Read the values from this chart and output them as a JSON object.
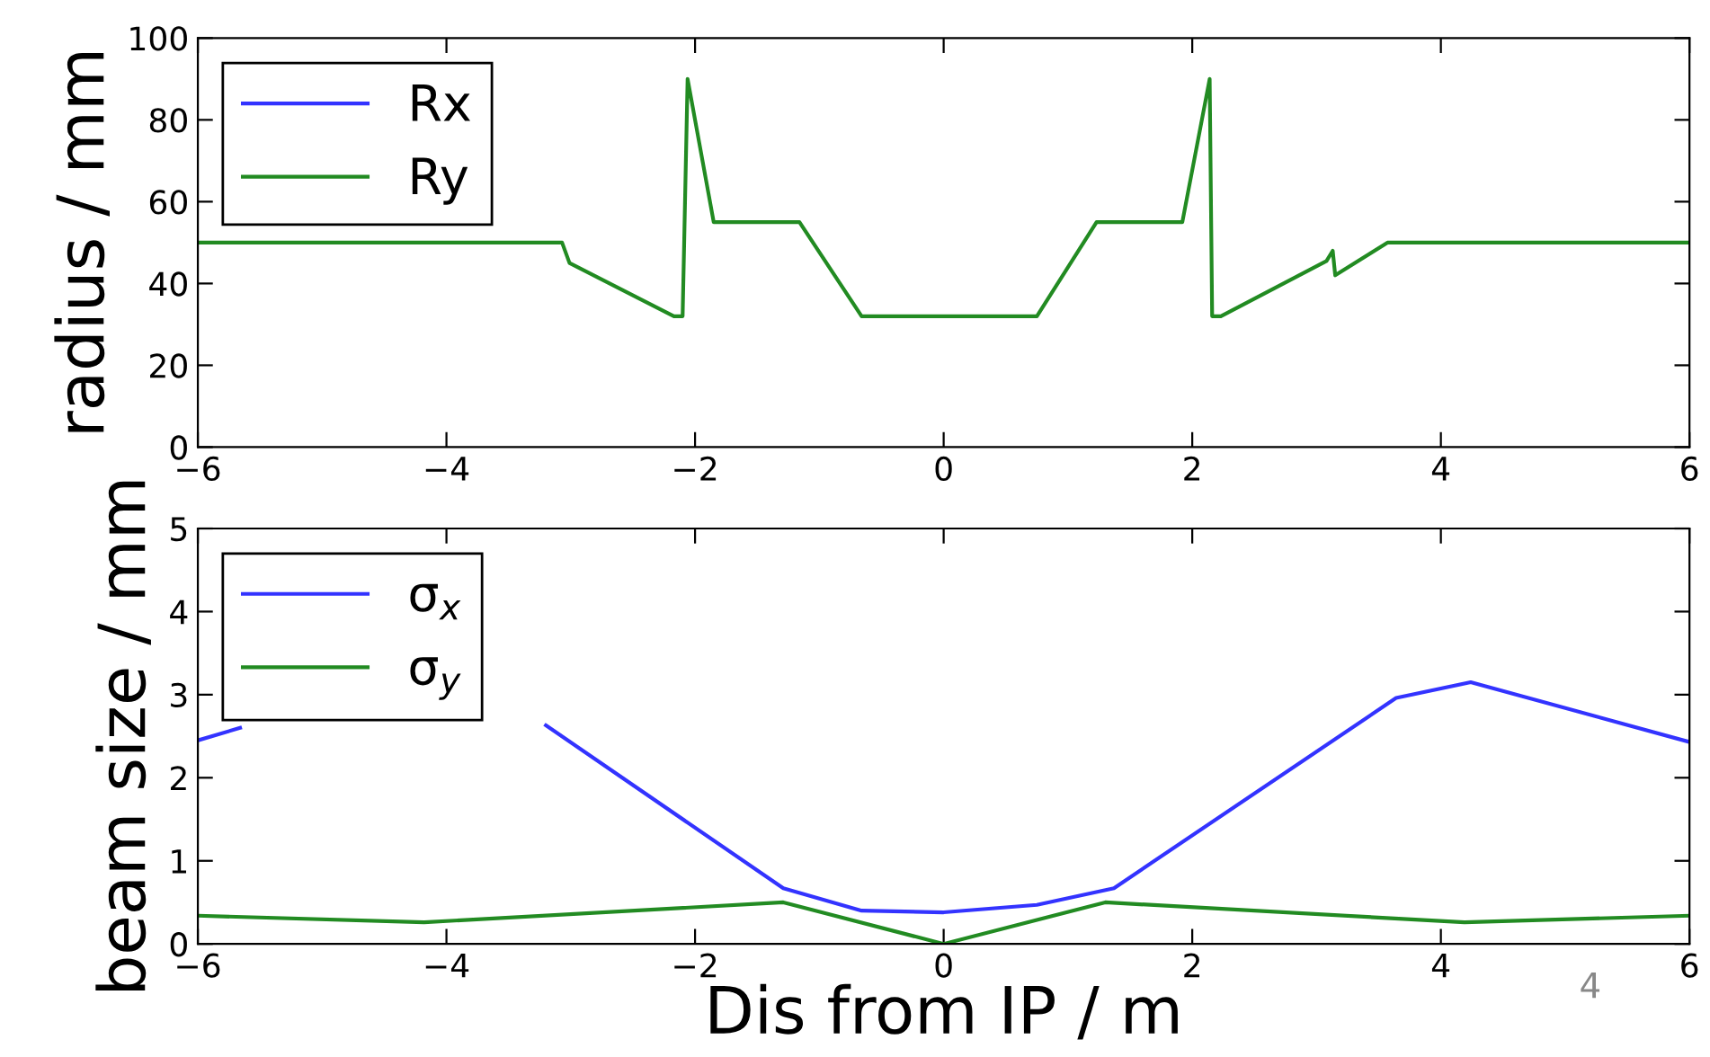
{
  "chart_data": [
    {
      "type": "line",
      "ylabel": "radius / mm",
      "xlim": [
        -6,
        6
      ],
      "ylim": [
        0,
        100
      ],
      "xticks": [
        -6,
        -4,
        -2,
        0,
        2,
        4,
        6
      ],
      "yticks": [
        0,
        20,
        40,
        60,
        80,
        100
      ],
      "legend": "top left",
      "grid": false,
      "marker": "none",
      "line_style": "solid",
      "series": [
        {
          "name": "Rx",
          "color": "#3333ff"
        },
        {
          "name": "Ry",
          "color": "#228b22",
          "x": [
            -6,
            -3.07,
            -3.01,
            -2.17,
            -2.1,
            -2.06,
            -1.85,
            -1.16,
            -0.66,
            0.75,
            1.23,
            1.92,
            2.14,
            2.16,
            2.23,
            3.08,
            3.13,
            3.15,
            3.57,
            6
          ],
          "values": [
            50,
            50,
            45,
            32,
            32,
            90,
            55,
            55,
            32,
            32,
            55,
            55,
            90,
            32,
            32,
            45.5,
            48,
            42,
            50,
            50
          ]
        }
      ]
    },
    {
      "type": "line",
      "xlabel": "Dis from IP / m",
      "ylabel": "beam size / mm",
      "xlim": [
        -6,
        6
      ],
      "ylim": [
        0,
        5
      ],
      "xticks": [
        -6,
        -4,
        -2,
        0,
        2,
        4,
        6
      ],
      "yticks": [
        0,
        1,
        2,
        3,
        4,
        5
      ],
      "legend": "top left",
      "grid": false,
      "marker": "none",
      "line_style": "solid",
      "annotations": [
        "4"
      ],
      "series": [
        {
          "name": "σ$_{x}$",
          "color": "#3333ff",
          "x": [
            -6,
            -5.66,
            -4.5,
            -3.2,
            -1.29,
            -0.66,
            0,
            0.75,
            1.37,
            3.64,
            4.24,
            6
          ],
          "values": [
            2.45,
            2.6,
            null,
            2.63,
            0.67,
            0.4,
            0.38,
            0.47,
            0.67,
            2.96,
            3.15,
            2.43
          ]
        },
        {
          "name": "σ$_{y}$",
          "color": "#228b22",
          "x": [
            -6,
            -4.18,
            -1.29,
            0,
            1.3,
            4.19,
            6
          ],
          "values": [
            0.34,
            0.26,
            0.5,
            0,
            0.5,
            0.26,
            0.34
          ]
        }
      ]
    }
  ]
}
